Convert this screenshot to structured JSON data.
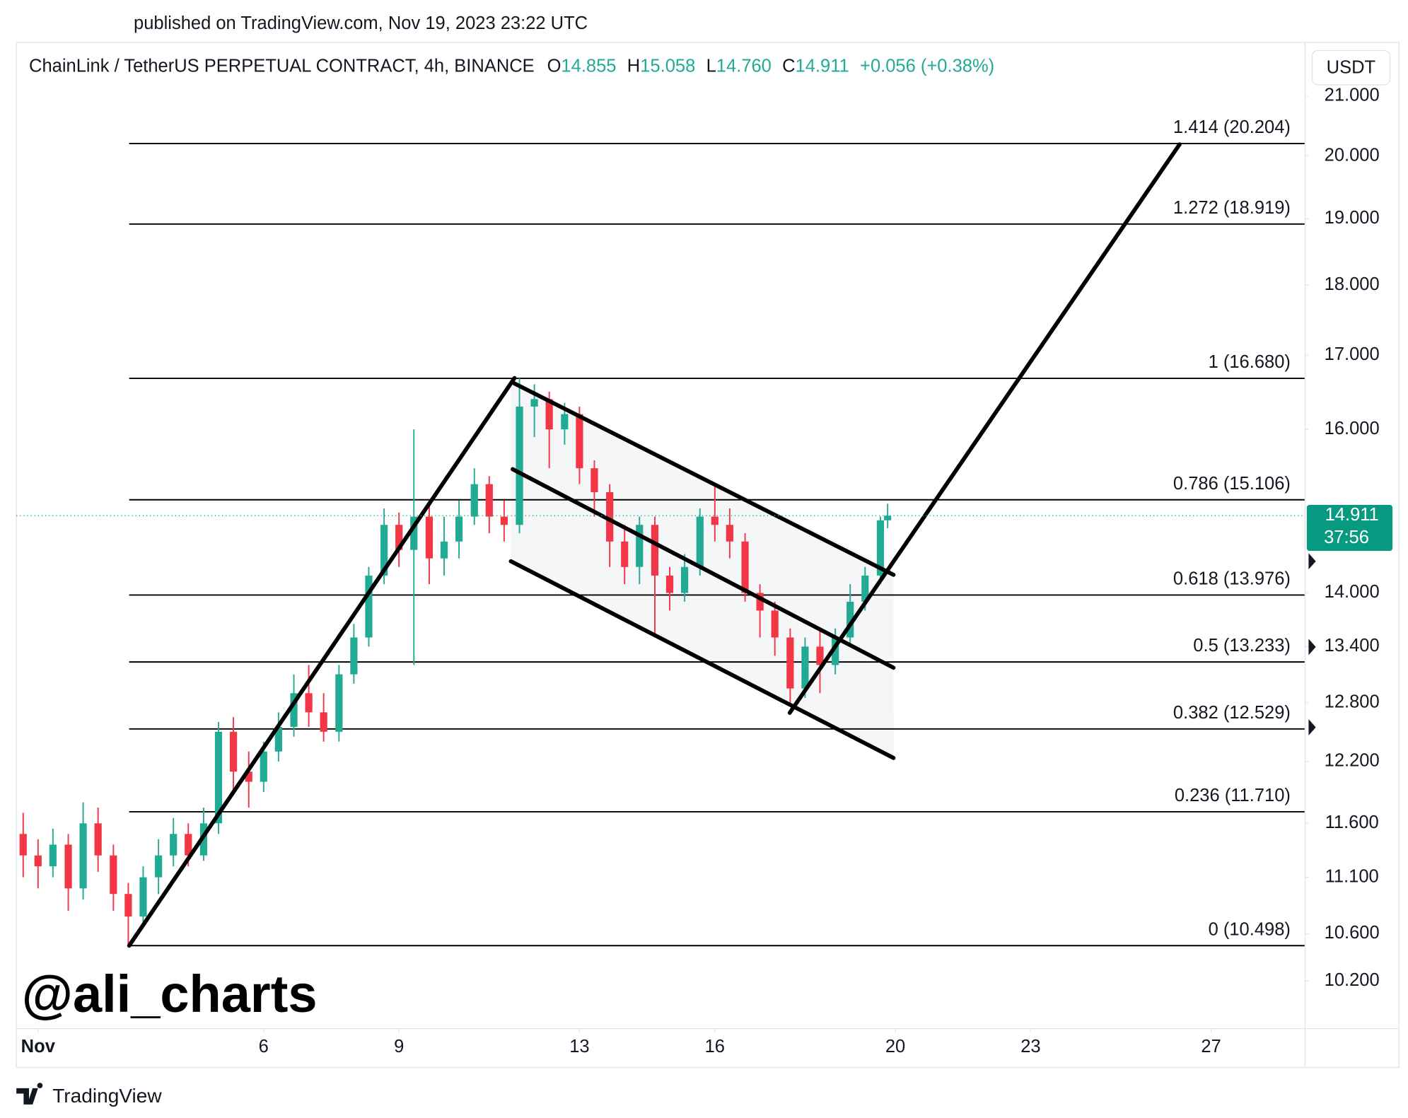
{
  "chart_data": {
    "type": "candlestick",
    "published": "published on TradingView.com, Nov 19, 2023 23:22 UTC",
    "title": "ChainLink / TetherUS PERPETUAL CONTRACT, 4h, BINANCE",
    "ohlc_header": [
      {
        "label": "O",
        "value": "14.855"
      },
      {
        "label": "H",
        "value": "15.058"
      },
      {
        "label": "L",
        "value": "14.760"
      },
      {
        "label": "C",
        "value": "14.911"
      }
    ],
    "change": "+0.056 (+0.38%)",
    "currency": "USDT",
    "watermark": "@ali_charts",
    "brand": "TradingView",
    "log_scale": true,
    "up_color": "#22ab94",
    "down_color": "#f23645",
    "x": [
      0.67,
      1.0,
      1.33,
      1.67,
      2.0,
      2.33,
      2.67,
      3.0,
      3.33,
      3.67,
      4.0,
      4.33,
      4.67,
      5.0,
      5.33,
      5.67,
      6.0,
      6.33,
      6.67,
      7.0,
      7.33,
      7.67,
      8.0,
      8.33,
      8.67,
      9.0,
      9.33,
      9.67,
      10.0,
      10.33,
      10.67,
      11.0,
      11.33,
      11.67,
      12.0,
      12.33,
      12.67,
      13.0,
      13.33,
      13.67,
      14.0,
      14.33,
      14.67,
      15.0,
      15.33,
      15.67,
      16.0,
      16.33,
      16.67,
      17.0,
      17.33,
      17.67,
      18.0,
      18.33,
      18.67,
      19.0,
      19.33,
      19.67,
      19.83
    ],
    "open": [
      11.5,
      11.3,
      11.2,
      11.4,
      11.0,
      11.6,
      11.3,
      10.95,
      10.75,
      11.1,
      11.3,
      11.5,
      11.3,
      11.6,
      12.5,
      12.1,
      12.0,
      12.3,
      12.55,
      12.9,
      12.7,
      12.5,
      13.1,
      13.5,
      14.2,
      14.8,
      14.5,
      14.9,
      14.4,
      14.6,
      14.9,
      15.3,
      14.9,
      14.8,
      16.3,
      16.4,
      16.0,
      16.2,
      15.5,
      15.2,
      14.6,
      14.3,
      14.8,
      14.2,
      14.0,
      14.3,
      14.9,
      14.8,
      14.6,
      14.0,
      13.8,
      13.5,
      12.95,
      13.4,
      13.2,
      13.5,
      13.9,
      14.2,
      14.855
    ],
    "high": [
      11.7,
      11.45,
      11.55,
      11.5,
      11.8,
      11.75,
      11.4,
      11.05,
      11.2,
      11.45,
      11.65,
      11.6,
      11.75,
      12.6,
      12.65,
      12.3,
      12.4,
      12.7,
      13.1,
      13.2,
      12.9,
      13.2,
      13.65,
      14.3,
      15.0,
      14.95,
      16.0,
      15.1,
      14.9,
      15.1,
      15.5,
      15.4,
      15.1,
      16.68,
      16.6,
      16.5,
      16.35,
      16.3,
      15.6,
      15.3,
      14.8,
      14.9,
      14.9,
      14.3,
      14.45,
      15.0,
      15.3,
      15.0,
      14.7,
      14.1,
      13.9,
      13.6,
      13.5,
      13.6,
      13.6,
      14.1,
      14.3,
      14.9,
      15.058
    ],
    "low": [
      11.1,
      11.0,
      11.1,
      10.8,
      10.9,
      11.15,
      10.8,
      10.498,
      10.65,
      10.95,
      11.2,
      11.2,
      11.25,
      11.5,
      11.9,
      11.75,
      11.9,
      12.2,
      12.45,
      12.55,
      12.4,
      12.4,
      13.0,
      13.4,
      14.1,
      14.3,
      13.2,
      14.1,
      14.2,
      14.4,
      14.8,
      14.7,
      14.6,
      14.7,
      15.9,
      15.5,
      15.8,
      15.3,
      14.9,
      14.3,
      14.1,
      14.1,
      13.5,
      13.8,
      13.9,
      14.2,
      14.6,
      14.4,
      13.9,
      13.5,
      13.3,
      12.8,
      12.85,
      12.9,
      13.1,
      13.4,
      13.8,
      14.1,
      14.76
    ],
    "close": [
      11.3,
      11.2,
      11.4,
      11.0,
      11.6,
      11.3,
      10.95,
      10.75,
      11.1,
      11.3,
      11.5,
      11.3,
      11.6,
      12.5,
      12.1,
      12.0,
      12.3,
      12.55,
      12.9,
      12.7,
      12.5,
      13.1,
      13.5,
      14.2,
      14.8,
      14.5,
      14.9,
      14.4,
      14.6,
      14.9,
      15.3,
      14.9,
      14.8,
      16.3,
      16.4,
      16.0,
      16.2,
      15.5,
      15.2,
      14.6,
      14.3,
      14.8,
      14.2,
      14.0,
      14.3,
      14.9,
      14.8,
      14.6,
      14.0,
      13.8,
      13.5,
      12.95,
      13.4,
      13.2,
      13.5,
      13.9,
      14.2,
      14.855,
      14.911
    ],
    "current_price": 14.911,
    "countdown": "37:56",
    "fib_levels": [
      {
        "value": 20.204,
        "label": "1.414 (20.204)"
      },
      {
        "value": 18.919,
        "label": "1.272 (18.919)"
      },
      {
        "value": 16.68,
        "label": "1 (16.680)"
      },
      {
        "value": 15.106,
        "label": "0.786 (15.106)"
      },
      {
        "value": 13.976,
        "label": "0.618 (13.976)"
      },
      {
        "value": 13.233,
        "label": "0.5 (13.233)"
      },
      {
        "value": 12.529,
        "label": "0.382 (12.529)"
      },
      {
        "value": 11.71,
        "label": "0.236 (11.710)"
      },
      {
        "value": 10.498,
        "label": "0 (10.498)"
      }
    ],
    "xlim": [
      0.52,
      29.08
    ],
    "xticks": [
      {
        "value": 1,
        "label": "Nov"
      },
      6,
      9,
      13,
      16,
      20,
      23,
      27
    ],
    "ylim": [
      9.81,
      21.18
    ],
    "yticks": [
      {
        "value": 21,
        "label": "21.000"
      },
      {
        "value": 20,
        "label": "20.000"
      },
      {
        "value": 19,
        "label": "19.000"
      },
      {
        "value": 18,
        "label": "18.000"
      },
      {
        "value": 17,
        "label": "17.000"
      },
      {
        "value": 16,
        "label": "16.000"
      },
      {
        "value": 14,
        "label": "14.000"
      },
      {
        "value": 13.4,
        "label": "13.400"
      },
      {
        "value": 12.8,
        "label": "12.800"
      },
      {
        "value": 12.2,
        "label": "12.200"
      },
      {
        "value": 11.6,
        "label": "11.600"
      },
      {
        "value": 11.1,
        "label": "11.100"
      },
      {
        "value": 10.6,
        "label": "10.600"
      },
      {
        "value": 10.2,
        "label": "10.200"
      }
    ]
  }
}
